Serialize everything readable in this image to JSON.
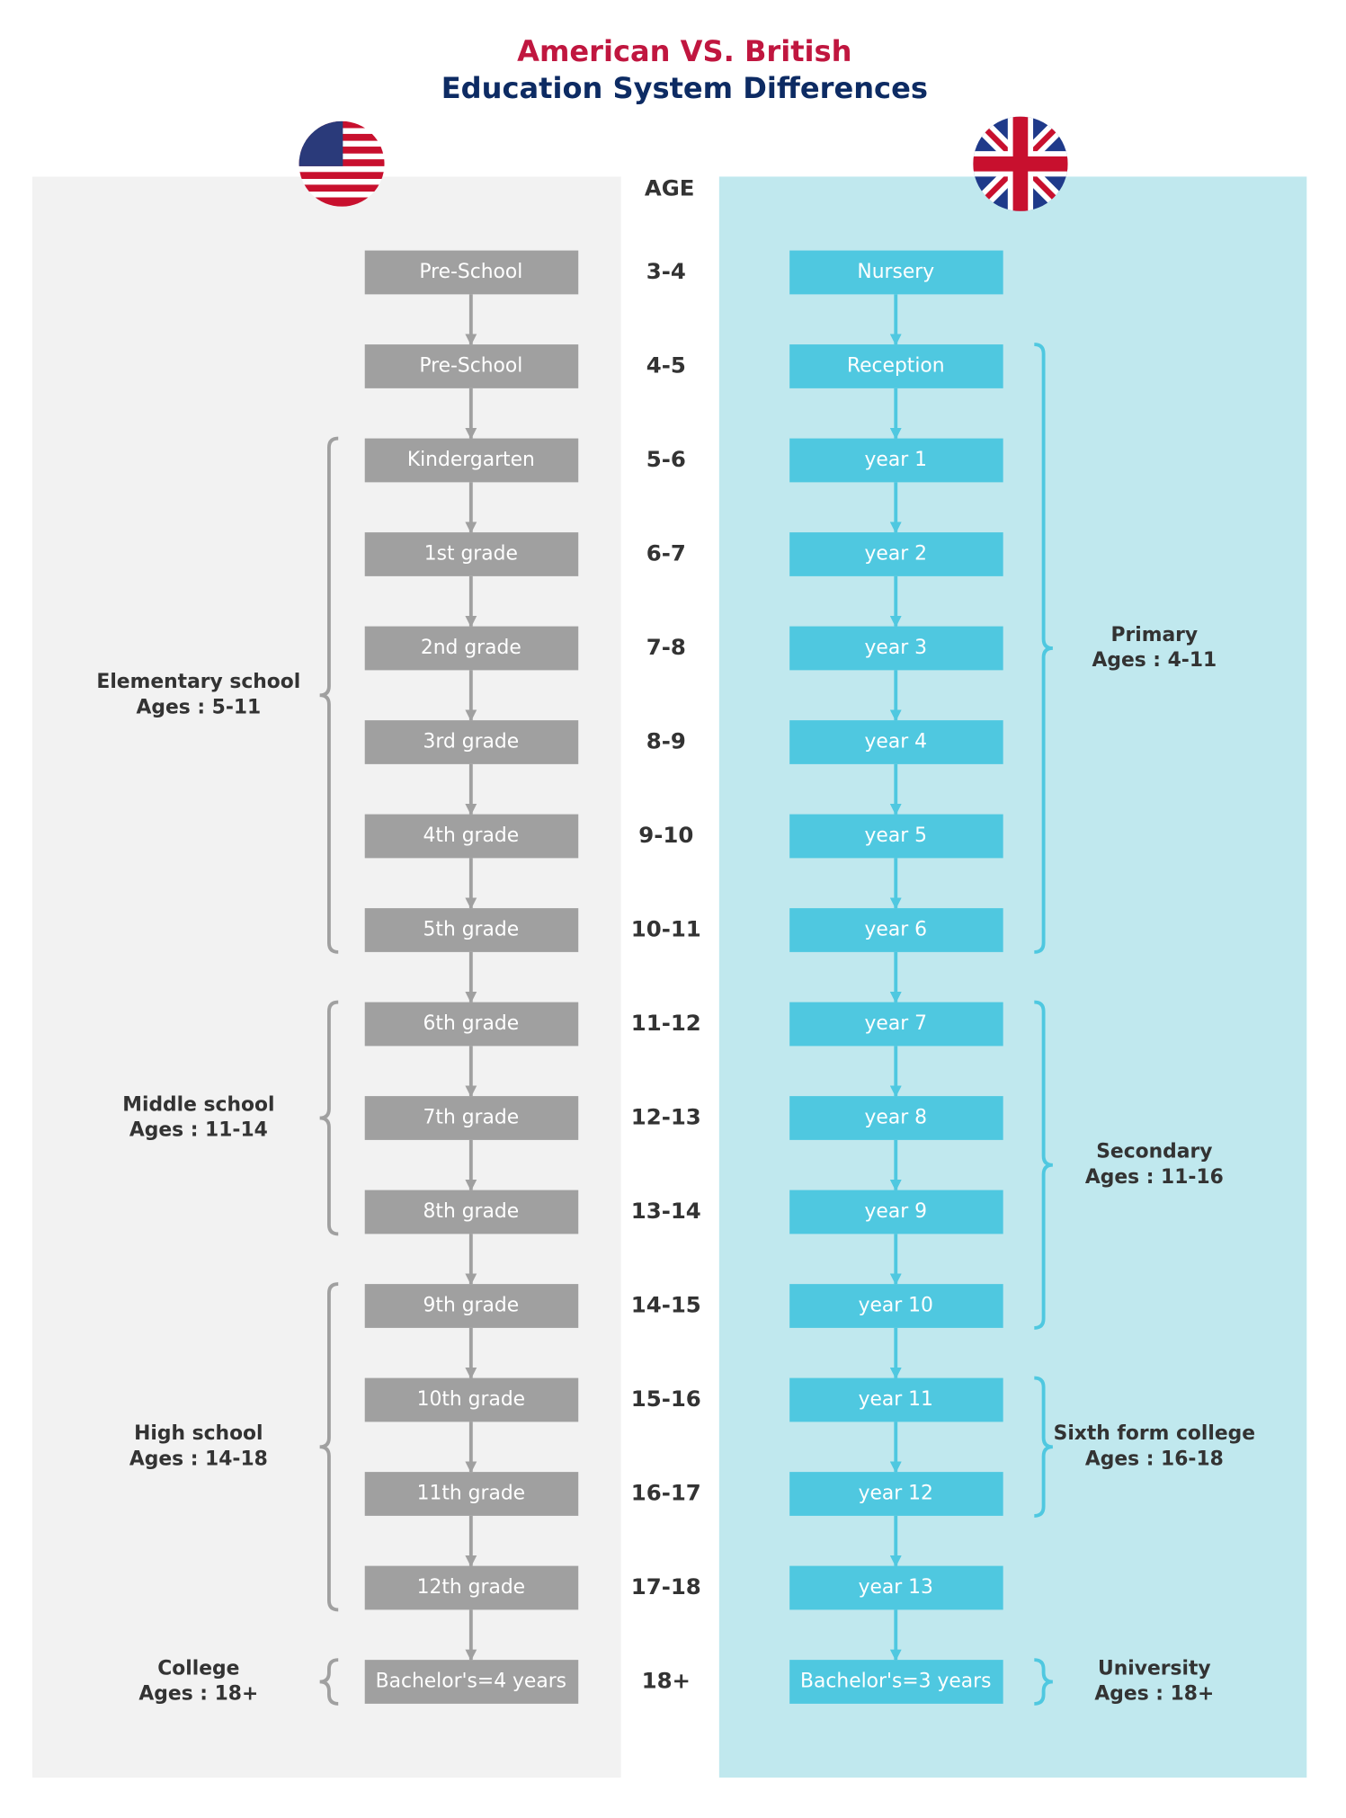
{
  "header": {
    "title_line1": "American VS. British",
    "title_line2": "Education System Differences",
    "age_heading": "AGE"
  },
  "ages": [
    "3-4",
    "4-5",
    "5-6",
    "6-7",
    "7-8",
    "8-9",
    "9-10",
    "10-11",
    "11-12",
    "12-13",
    "13-14",
    "14-15",
    "15-16",
    "16-17",
    "17-18",
    "18+"
  ],
  "american": {
    "steps": [
      "Pre-School",
      "Pre-School",
      "Kindergarten",
      "1st grade",
      "2nd grade",
      "3rd grade",
      "4th grade",
      "5th grade",
      "6th grade",
      "7th grade",
      "8th grade",
      "9th grade",
      "10th grade",
      "11th grade",
      "12th grade",
      "Bachelor's=4 years"
    ],
    "groups": [
      {
        "name": "Elementary school",
        "ages": "Ages : 5-11"
      },
      {
        "name": "Middle school",
        "ages": "Ages : 11-14"
      },
      {
        "name": "High school",
        "ages": "Ages : 14-18"
      },
      {
        "name": "College",
        "ages": "Ages : 18+"
      }
    ]
  },
  "british": {
    "steps": [
      "Nursery",
      "Reception",
      "year 1",
      "year 2",
      "year 3",
      "year 4",
      "year 5",
      "year 6",
      "year 7",
      "year 8",
      "year 9",
      "year 10",
      "year 11",
      "year 12",
      "year 13",
      "Bachelor's=3 years"
    ],
    "groups": [
      {
        "name": "Primary",
        "ages": "Ages : 4-11"
      },
      {
        "name": "Secondary",
        "ages": "Ages : 11-16"
      },
      {
        "name": "Sixth form college",
        "ages": "Ages : 16-18"
      },
      {
        "name": "University",
        "ages": "Ages : 18+"
      }
    ]
  }
}
